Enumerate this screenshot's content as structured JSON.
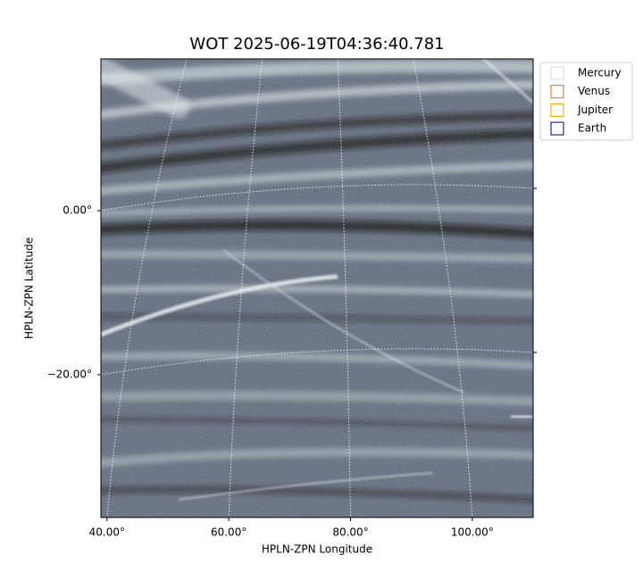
{
  "chart_data": {
    "type": "image",
    "title": "WOT 2025-06-19T04:36:40.781",
    "xlabel": "HPLN-ZPN Longitude",
    "ylabel": "HPLN-ZPN Latitude",
    "xlim": [
      39,
      110
    ],
    "ylim": [
      -37.4,
      18.5
    ],
    "xticks": [
      {
        "value": 40,
        "label": "40.00°"
      },
      {
        "value": 60,
        "label": "60.00°"
      },
      {
        "value": 80,
        "label": "80.00°"
      },
      {
        "value": 100,
        "label": "100.00°"
      }
    ],
    "yticks": [
      {
        "value": 0,
        "label": "0.00°"
      },
      {
        "value": -20,
        "label": "−20.00°"
      }
    ],
    "grid": true,
    "legend": "upper right",
    "series": [
      {
        "name": "Mercury",
        "color": "#d3d3d3"
      },
      {
        "name": "Venus",
        "color": "#d2691e"
      },
      {
        "name": "Jupiter",
        "color": "#e0a800"
      },
      {
        "name": "Earth",
        "color": "#000080"
      }
    ]
  }
}
